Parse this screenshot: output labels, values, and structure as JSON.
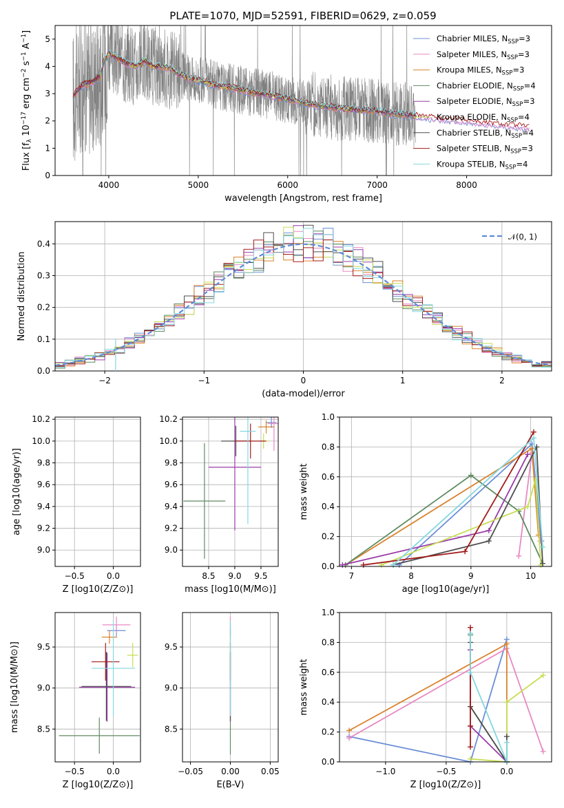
{
  "figure_title": "PLATE=1070, MJD=52591, FIBERID=0629, z=0.059",
  "colors": [
    "#6a8ed8",
    "#e889c2",
    "#d9822b",
    "#5e8a60",
    "#9a3aa8",
    "#c6de53",
    "#4d4d4d",
    "#a31a1a",
    "#84d7df"
  ],
  "chart_data": [
    {
      "type": "line",
      "name": "spectrum",
      "xlabel": "wavelength [Angstrom, rest frame]",
      "ylabel": "Flux [f_λ 10^-17 erg cm^-2 s^-1 A^-1]",
      "xlim": [
        3400,
        8950
      ],
      "ylim": [
        0,
        5.5
      ],
      "x_ticks": [
        "4000",
        "5000",
        "6000",
        "7000",
        "8000"
      ],
      "y_ticks": [
        "0",
        "1",
        "2",
        "3",
        "4",
        "5"
      ],
      "observed_range": [
        3600,
        7430
      ],
      "model_continuum": {
        "x": [
          3600,
          3700,
          3800,
          3900,
          3950,
          4000,
          4100,
          4200,
          4300,
          4400,
          4500,
          4600,
          4700,
          4800,
          4900,
          5000,
          5200,
          5400,
          5600,
          5800,
          6000,
          6200,
          6400,
          6600,
          6800,
          7000,
          7200,
          7400,
          7600,
          7800,
          8000,
          8200,
          8400,
          8700
        ],
        "y": [
          2.9,
          3.3,
          3.4,
          3.6,
          4.2,
          4.5,
          4.3,
          4.1,
          4.0,
          4.2,
          4.0,
          4.0,
          3.9,
          3.7,
          3.55,
          3.5,
          3.3,
          3.2,
          3.05,
          2.95,
          2.8,
          2.65,
          2.55,
          2.45,
          2.4,
          2.35,
          2.25,
          2.2,
          2.1,
          2.05,
          2.0,
          1.9,
          1.85,
          1.75
        ]
      },
      "legend": [
        {
          "text": "Chabrier MILES, N",
          "sub": "SSP",
          "tail": "=3"
        },
        {
          "text": "Salpeter MILES, N",
          "sub": "SSP",
          "tail": "=3"
        },
        {
          "text": "Kroupa MILES, N",
          "sub": "SSP",
          "tail": "=3"
        },
        {
          "text": "Chabrier ELODIE, N",
          "sub": "SSP",
          "tail": "=4"
        },
        {
          "text": "Salpeter ELODIE, N",
          "sub": "SSP",
          "tail": "=3"
        },
        {
          "text": "Kroupa ELODIE, N",
          "sub": "SSP",
          "tail": "=4"
        },
        {
          "text": "Chabrier STELIB, N",
          "sub": "SSP",
          "tail": "=4"
        },
        {
          "text": "Salpeter STELIB, N",
          "sub": "SSP",
          "tail": "=3"
        },
        {
          "text": "Kroupa STELIB, N",
          "sub": "SSP",
          "tail": "=4"
        }
      ]
    },
    {
      "type": "line",
      "name": "residual histogram",
      "xlabel": "(data-model)/error",
      "ylabel": "Normed distribution",
      "xlim": [
        -2.5,
        2.5
      ],
      "ylim": [
        0,
        0.47
      ],
      "x_ticks": [
        "−2",
        "−1",
        "0",
        "1",
        "2"
      ],
      "y_ticks": [
        "0.0",
        "0.1",
        "0.2",
        "0.3",
        "0.4"
      ],
      "legend": "𝒩(0, 1)",
      "bin_width": 0.1
    },
    {
      "type": "scatter",
      "name": "age vs Z",
      "xlabel": "Z [log10(Z/Z⊙)]",
      "ylabel": "age [log10(age/yr)]",
      "xlim": [
        -0.75,
        0.35
      ],
      "ylim": [
        8.85,
        10.22
      ],
      "x_ticks": [
        "−0.5",
        "0.0"
      ],
      "x_tick_values": [
        -0.5,
        0.0
      ],
      "y_ticks": [
        "9.0",
        "9.2",
        "9.4",
        "9.6",
        "9.8",
        "10.0",
        "10.2"
      ],
      "y_tick_values": [
        9.0,
        9.2,
        9.4,
        9.6,
        9.8,
        10.0,
        10.2
      ],
      "points": [
        {
          "c": 0,
          "x": 0.02,
          "y": 10.17,
          "xe": 0.12,
          "ye": 0.05
        },
        {
          "c": 1,
          "x": 0.15,
          "y": 10.16,
          "xe": 0.15,
          "ye": 0.06
        },
        {
          "c": 2,
          "x": -0.07,
          "y": 10.12,
          "xe": 0.09,
          "ye": 0.05
        },
        {
          "c": 3,
          "x": -0.18,
          "y": 9.45,
          "xe": 0.5,
          "ye": 0.52
        },
        {
          "c": 4,
          "x": -0.08,
          "y": 9.76,
          "xe": 0.34,
          "ye": 0.58
        },
        {
          "c": 5,
          "x": 0.27,
          "y": 10.0,
          "xe": 0.1,
          "ye": 0.07
        },
        {
          "c": 6,
          "x": -0.08,
          "y": 10.0,
          "xe": 0.22,
          "ye": 0.14
        },
        {
          "c": 7,
          "x": -0.1,
          "y": 10.0,
          "xe": 0.2,
          "ye": 0.15
        },
        {
          "c": 8,
          "x": 0.03,
          "y": 10.09,
          "xe": 0.18,
          "ye": 0.85
        }
      ]
    },
    {
      "type": "scatter",
      "name": "age vs mass",
      "xlabel": "mass [log10(M/M⊙)]",
      "ylabel": "",
      "xlim": [
        8.0,
        9.83
      ],
      "ylim": [
        8.85,
        10.22
      ],
      "x_ticks": [
        "8.5",
        "9.0",
        "9.5"
      ],
      "x_tick_values": [
        8.5,
        9.0,
        9.5
      ],
      "y_ticks": [
        "9.0",
        "9.2",
        "9.4",
        "9.6",
        "9.8",
        "10.0",
        "10.2"
      ],
      "y_tick_values": [
        9.0,
        9.2,
        9.4,
        9.6,
        9.8,
        10.0,
        10.2
      ],
      "points": [
        {
          "c": 0,
          "x": 9.7,
          "y": 10.17,
          "xe": 0.1,
          "ye": 0.05
        },
        {
          "c": 1,
          "x": 9.75,
          "y": 10.16,
          "xe": 0.12,
          "ye": 0.25
        },
        {
          "c": 2,
          "x": 9.6,
          "y": 10.13,
          "xe": 0.15,
          "ye": 0.06
        },
        {
          "c": 3,
          "x": 8.42,
          "y": 9.45,
          "xe": 0.4,
          "ye": 0.53
        },
        {
          "c": 4,
          "x": 9.0,
          "y": 9.76,
          "xe": 0.5,
          "ye": 0.58
        },
        {
          "c": 5,
          "x": 9.55,
          "y": 10.0,
          "xe": 0.1,
          "ye": 0.07
        },
        {
          "c": 6,
          "x": 9.02,
          "y": 10.0,
          "xe": 0.28,
          "ye": 0.14
        },
        {
          "c": 7,
          "x": 9.3,
          "y": 10.0,
          "xe": 0.3,
          "ye": 0.16
        },
        {
          "c": 8,
          "x": 9.25,
          "y": 10.09,
          "xe": 0.15,
          "ye": 0.85
        }
      ]
    },
    {
      "type": "line",
      "name": "mass weight vs age",
      "xlabel": "age [log10(age/yr)]",
      "ylabel": "mass weight",
      "xlim": [
        6.8,
        10.35
      ],
      "ylim": [
        0,
        1.0
      ],
      "x_ticks": [
        "7",
        "8",
        "9",
        "10"
      ],
      "x_tick_values": [
        7,
        8,
        9,
        10
      ],
      "y_ticks": [
        "0.0",
        "0.2",
        "0.4",
        "0.6",
        "0.8",
        "1.0"
      ],
      "y_tick_values": [
        0,
        0.2,
        0.4,
        0.6,
        0.8,
        1.0
      ],
      "series": [
        {
          "c": 0,
          "x": [
            7.8,
            10.02,
            10.18
          ],
          "y": [
            0.01,
            0.82,
            0.17
          ]
        },
        {
          "c": 1,
          "x": [
            9.8,
            10.02,
            10.16
          ],
          "y": [
            0.07,
            0.76,
            0.17
          ]
        },
        {
          "c": 2,
          "x": [
            6.9,
            10.02,
            10.13
          ],
          "y": [
            0.01,
            0.79,
            0.21
          ]
        },
        {
          "c": 3,
          "x": [
            6.9,
            9.0,
            9.8,
            10.2
          ],
          "y": [
            0.01,
            0.61,
            0.37,
            0.02
          ]
        },
        {
          "c": 4,
          "x": [
            6.85,
            9.3,
            9.95
          ],
          "y": [
            0.01,
            0.24,
            0.75
          ]
        },
        {
          "c": 5,
          "x": [
            7.5,
            9.95,
            10.08,
            10.17
          ],
          "y": [
            0.01,
            0.4,
            0.58,
            0.01
          ]
        },
        {
          "c": 6,
          "x": [
            7.7,
            9.3,
            10.1,
            10.2
          ],
          "y": [
            0.01,
            0.17,
            0.8,
            0.02
          ]
        },
        {
          "c": 7,
          "x": [
            7.2,
            8.9,
            10.05
          ],
          "y": [
            0.01,
            0.1,
            0.9
          ]
        },
        {
          "c": 8,
          "x": [
            7.7,
            10.05,
            10.2
          ],
          "y": [
            0.01,
            0.86,
            0.13
          ]
        }
      ]
    },
    {
      "type": "scatter",
      "name": "mass vs Z",
      "xlabel": "Z [log10(Z/Z⊙)]",
      "ylabel": "mass [log10(M/M⊙)]",
      "xlim": [
        -0.75,
        0.35
      ],
      "ylim": [
        8.1,
        9.92
      ],
      "x_ticks": [
        "−0.5",
        "0.0"
      ],
      "x_tick_values": [
        -0.5,
        0.0
      ],
      "y_ticks": [
        "8.5",
        "9.0",
        "9.5"
      ],
      "y_tick_values": [
        8.5,
        9.0,
        9.5
      ],
      "points": [
        {
          "c": 0,
          "x": 0.04,
          "y": 9.7,
          "xe": 0.12,
          "ye": 0.07
        },
        {
          "c": 1,
          "x": 0.04,
          "y": 9.77,
          "xe": 0.18,
          "ye": 0.1
        },
        {
          "c": 2,
          "x": -0.05,
          "y": 9.62,
          "xe": 0.1,
          "ye": 0.08
        },
        {
          "c": 3,
          "x": -0.18,
          "y": 8.42,
          "xe": 0.52,
          "ye": 0.22
        },
        {
          "c": 4,
          "x": -0.08,
          "y": 9.01,
          "xe": 0.36,
          "ye": 0.42
        },
        {
          "c": 5,
          "x": 0.25,
          "y": 9.4,
          "xe": 0.07,
          "ye": 0.15
        },
        {
          "c": 6,
          "x": -0.09,
          "y": 9.02,
          "xe": 0.32,
          "ye": 0.42
        },
        {
          "c": 7,
          "x": -0.1,
          "y": 9.32,
          "xe": 0.18,
          "ye": 0.23
        },
        {
          "c": 8,
          "x": 0.0,
          "y": 9.24,
          "xe": 0.28,
          "ye": 0.58
        }
      ]
    },
    {
      "type": "scatter",
      "name": "mass vs E(B-V)",
      "xlabel": "E(B-V)",
      "ylabel": "",
      "xlim": [
        -0.06,
        0.06
      ],
      "ylim": [
        8.1,
        9.92
      ],
      "x_ticks": [
        "−0.05",
        "0.00",
        "0.05"
      ],
      "x_tick_values": [
        -0.05,
        0.0,
        0.05
      ],
      "y_ticks": [
        "8.5",
        "9.0",
        "9.5"
      ],
      "y_tick_values": [
        8.5,
        9.0,
        9.5
      ],
      "points": [
        {
          "c": 0,
          "x": 0.0,
          "y": 9.7,
          "xe": 0.0,
          "ye": 0.08
        },
        {
          "c": 1,
          "x": 0.0,
          "y": 9.77,
          "xe": 0.0,
          "ye": 0.1
        },
        {
          "c": 2,
          "x": 0.0,
          "y": 9.62,
          "xe": 0.0,
          "ye": 0.08
        },
        {
          "c": 3,
          "x": 0.0,
          "y": 8.42,
          "xe": 0.0,
          "ye": 0.23
        },
        {
          "c": 4,
          "x": 0.0,
          "y": 9.01,
          "xe": 0.0,
          "ye": 0.42
        },
        {
          "c": 5,
          "x": 0.0,
          "y": 9.4,
          "xe": 0.0,
          "ye": 0.15
        },
        {
          "c": 6,
          "x": 0.0,
          "y": 9.02,
          "xe": 0.0,
          "ye": 0.42
        },
        {
          "c": 7,
          "x": 0.0,
          "y": 9.32,
          "xe": 0.0,
          "ye": 0.23
        },
        {
          "c": 8,
          "x": 0.0,
          "y": 9.24,
          "xe": 0.0,
          "ye": 0.58
        }
      ]
    },
    {
      "type": "line",
      "name": "mass weight vs Z",
      "xlabel": "Z [log10(Z/Z⊙)]",
      "ylabel": "mass weight",
      "xlim": [
        -1.38,
        0.37
      ],
      "ylim": [
        0,
        1.0
      ],
      "x_ticks": [
        "−1.0",
        "−0.5",
        "0.0"
      ],
      "x_tick_values": [
        -1.0,
        -0.5,
        0.0
      ],
      "y_ticks": [
        "0.0",
        "0.2",
        "0.4",
        "0.6",
        "0.8",
        "1.0"
      ],
      "y_tick_values": [
        0,
        0.2,
        0.4,
        0.6,
        0.8,
        1.0
      ],
      "series": [
        {
          "c": 0,
          "x": [
            -1.3,
            -0.3,
            0.0
          ],
          "y": [
            0.17,
            0.0,
            0.82
          ]
        },
        {
          "c": 1,
          "x": [
            -1.3,
            0.0,
            0.3
          ],
          "y": [
            0.16,
            0.76,
            0.07
          ]
        },
        {
          "c": 2,
          "x": [
            -1.3,
            0.0,
            0.0
          ],
          "y": [
            0.21,
            0.79,
            0.0
          ]
        },
        {
          "c": 3,
          "x": [
            -0.3,
            -0.3,
            0.0
          ],
          "y": [
            0.85,
            0.37,
            0.0
          ]
        },
        {
          "c": 4,
          "x": [
            -0.3,
            -0.3,
            0.0
          ],
          "y": [
            0.75,
            0.24,
            0.0
          ]
        },
        {
          "c": 5,
          "x": [
            -0.3,
            0.0,
            0.0,
            0.3
          ],
          "y": [
            0.02,
            0.0,
            0.4,
            0.58
          ]
        },
        {
          "c": 6,
          "x": [
            -0.3,
            -0.3,
            0.0,
            0.0
          ],
          "y": [
            0.8,
            0.37,
            0.0,
            0.17
          ]
        },
        {
          "c": 7,
          "x": [
            -0.3,
            -0.3,
            -0.3
          ],
          "y": [
            0.9,
            0.24,
            0.1
          ]
        },
        {
          "c": 8,
          "x": [
            -0.3,
            -0.3,
            0.0,
            0.0
          ],
          "y": [
            0.86,
            0.6,
            0.0,
            0.13
          ]
        }
      ]
    }
  ]
}
